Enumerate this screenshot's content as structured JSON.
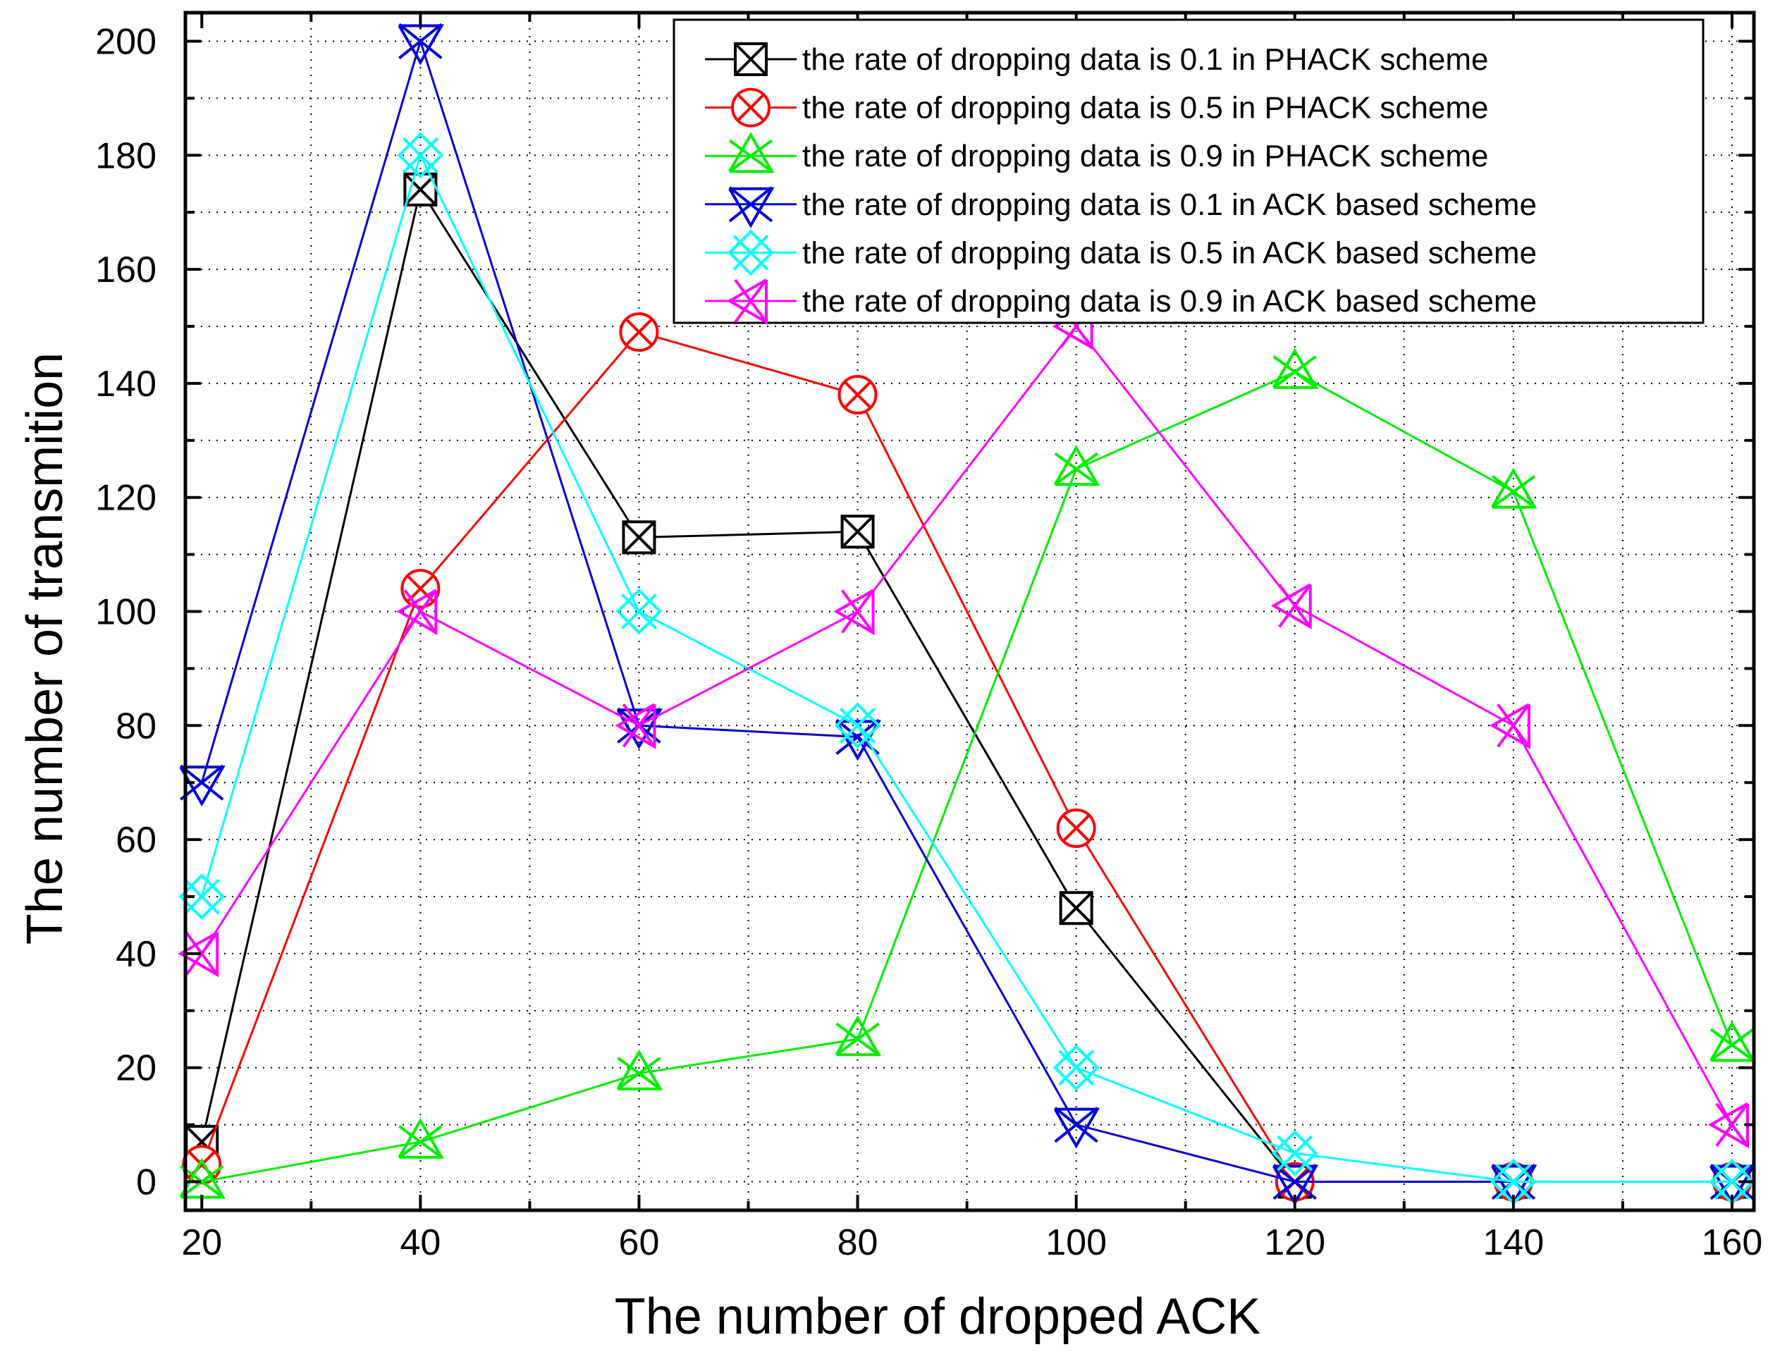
{
  "chart_data": {
    "type": "line",
    "title": "",
    "xlabel": "The number of dropped ACK",
    "ylabel": "The number of transmition",
    "xlim": [
      18.5,
      162
    ],
    "ylim": [
      -5,
      205
    ],
    "xticks": [
      20,
      40,
      60,
      80,
      100,
      120,
      140,
      160
    ],
    "yticks": [
      0,
      20,
      40,
      60,
      80,
      100,
      120,
      140,
      160,
      180,
      200
    ],
    "grid": true,
    "legend_position": "top-right",
    "series": [
      {
        "name": "the rate of dropping data is 0.1 in PHACK scheme",
        "color": "#000000",
        "marker": "square-x",
        "x": [
          20,
          40,
          60,
          80,
          100,
          120,
          140,
          160
        ],
        "y": [
          7,
          174,
          113,
          114,
          48,
          0,
          0,
          0
        ]
      },
      {
        "name": "the rate of dropping data is 0.5 in PHACK scheme",
        "color": "#ff0000",
        "marker": "circle-x",
        "x": [
          20,
          40,
          60,
          80,
          100,
          120,
          140,
          160
        ],
        "y": [
          3,
          104,
          149,
          138,
          62,
          0,
          0,
          0
        ]
      },
      {
        "name": "the rate of dropping data is 0.9 in PHACK scheme",
        "color": "#00ee00",
        "marker": "triangle-up-x",
        "x": [
          20,
          40,
          60,
          80,
          100,
          120,
          140,
          160
        ],
        "y": [
          0,
          7,
          19,
          25,
          125,
          142,
          121,
          24
        ]
      },
      {
        "name": "the rate of dropping data is 0.1 in ACK based scheme",
        "color": "#0000dd",
        "marker": "triangle-down-x",
        "x": [
          20,
          40,
          60,
          80,
          100,
          120,
          140,
          160
        ],
        "y": [
          70,
          200,
          80,
          78,
          10,
          0,
          0,
          0
        ]
      },
      {
        "name": "the rate of dropping data is 0.5 in ACK based scheme",
        "color": "#00ffff",
        "marker": "diamond-x",
        "x": [
          20,
          40,
          60,
          80,
          100,
          120,
          140,
          160
        ],
        "y": [
          50,
          180,
          100,
          80,
          20,
          5,
          0,
          0
        ]
      },
      {
        "name": "the rate of dropping data is 0.9 in ACK based scheme",
        "color": "#ff00ff",
        "marker": "triangle-left-x",
        "x": [
          20,
          40,
          60,
          80,
          100,
          120,
          140,
          160
        ],
        "y": [
          40,
          100,
          80,
          100,
          150,
          101,
          80,
          10
        ]
      }
    ]
  }
}
